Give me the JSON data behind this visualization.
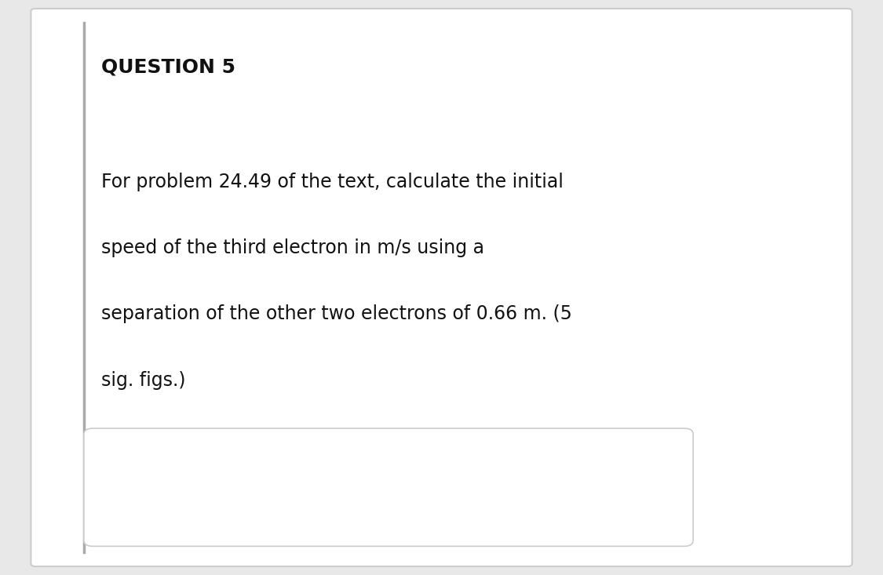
{
  "title": "QUESTION 5",
  "body_text": "For problem 24.49 of the text, calculate the initial\nspeed of the third electron in m/s using a\nseparation of the other two electrons of 0.66 m. (5\nsig. figs.)",
  "background_color": "#e8e8e8",
  "card_color": "#ffffff",
  "title_fontsize": 18,
  "body_fontsize": 17,
  "input_box_color": "#ffffff",
  "input_box_border_color": "#cccccc",
  "left_border_color": "#aaaaaa"
}
